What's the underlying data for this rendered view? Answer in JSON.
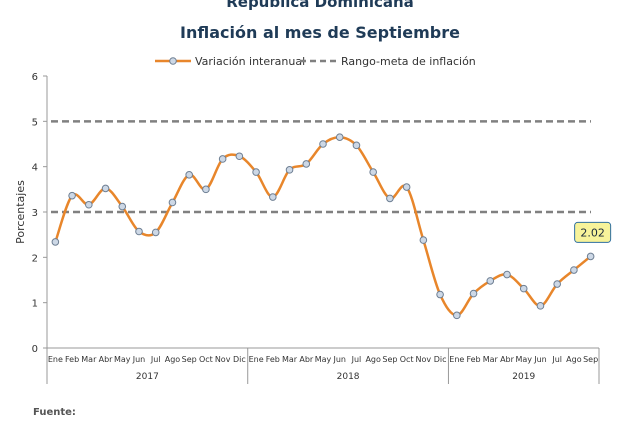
{
  "chart_data": {
    "type": "line",
    "title": "República Dominicana",
    "subtitle": "Inflación al mes de Septiembre",
    "ylabel": "Porcentajes",
    "ylim": [
      0,
      6
    ],
    "yticks": [
      "0",
      "1",
      "2",
      "3",
      "4",
      "5",
      "6"
    ],
    "grid": false,
    "legend_position": "top",
    "x": [
      "Ene",
      "Feb",
      "Mar",
      "Abr",
      "May",
      "Jun",
      "Jul",
      "Ago",
      "Sep",
      "Oct",
      "Nov",
      "Dic",
      "Ene",
      "Feb",
      "Mar",
      "Abr",
      "May",
      "Jun",
      "Jul",
      "Ago",
      "Sep",
      "Oct",
      "Nov",
      "Dic",
      "Ene",
      "Feb",
      "Mar",
      "Abr",
      "May",
      "Jun",
      "Jul",
      "Ago",
      "Sep"
    ],
    "years": [
      "2017",
      "2018",
      "2019"
    ],
    "series": [
      {
        "name": "Variación interanual",
        "color": "#e8862b",
        "values": [
          2.34,
          3.36,
          3.16,
          3.52,
          3.12,
          2.57,
          2.55,
          3.21,
          3.82,
          3.5,
          4.17,
          4.23,
          3.88,
          3.33,
          3.93,
          4.06,
          4.5,
          4.65,
          4.47,
          3.88,
          3.3,
          3.55,
          2.38,
          1.18,
          0.72,
          1.2,
          1.48,
          1.62,
          1.31,
          0.93,
          1.41,
          1.72,
          2.02
        ]
      },
      {
        "name": "Rango-meta de inflación",
        "color": "#808080",
        "style": "dashed",
        "bounds": [
          3,
          5
        ]
      }
    ],
    "callout": "2.02",
    "source_label": "Fuente:"
  }
}
